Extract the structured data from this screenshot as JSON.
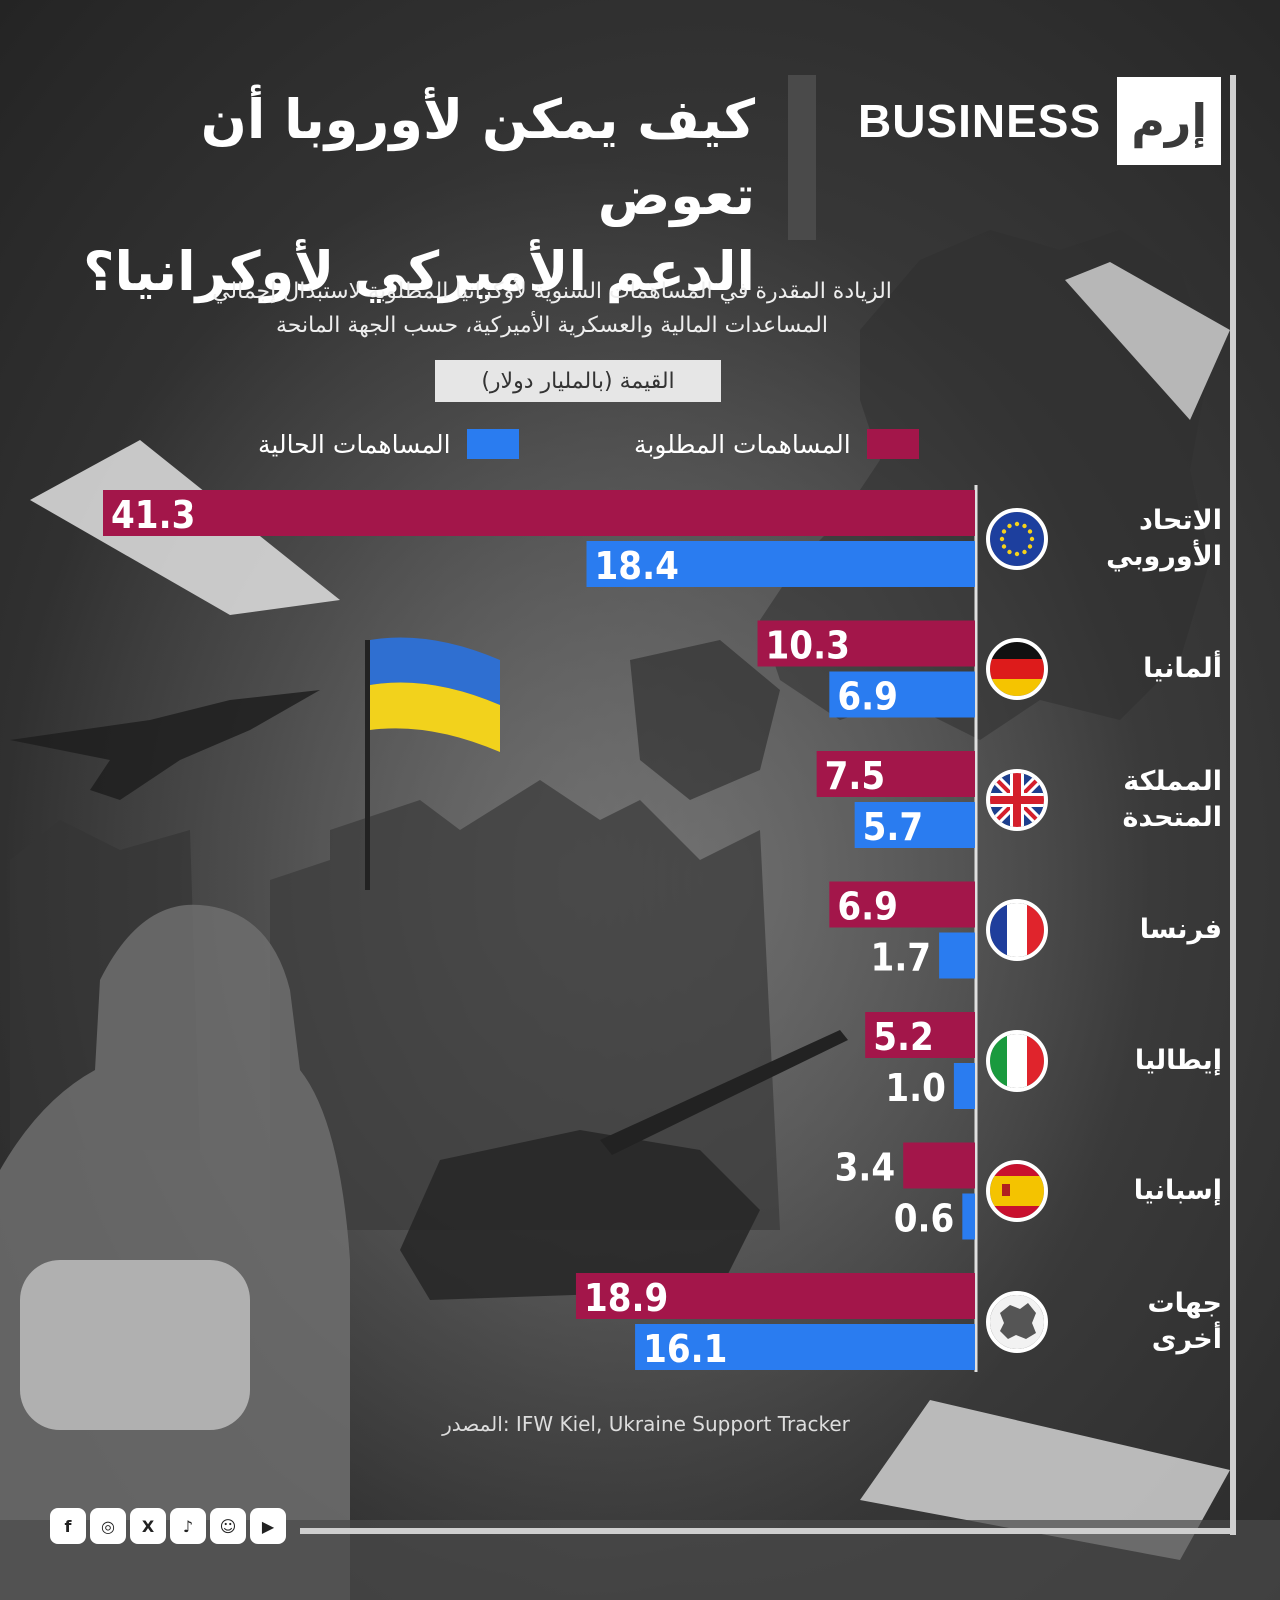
{
  "brand": {
    "name": "BUSINESS",
    "logo": "إرم"
  },
  "title": {
    "line1": "كيف يمكن لأوروبا أن تعوض",
    "line2": "الدعم الأميركي لأوكرانيا؟"
  },
  "subtitle": {
    "line1": "الزيادة المقدرة في المساهمات السنوية لأوكرانيا المطلوبة لاستبدال إجمالي",
    "line2": "المساعدات المالية والعسكرية الأميركية، حسب الجهة المانحة"
  },
  "unit_label": "القيمة (بالمليار دولار)",
  "legend": {
    "required": "المساهمات المطلوبة",
    "current": "المساهمات الحالية"
  },
  "colors": {
    "required": "#a3164a",
    "current": "#2a7cf0",
    "axis": "#e0e0e0"
  },
  "chart_data": {
    "type": "bar",
    "orientation": "horizontal",
    "categories": [
      {
        "line1": "الاتحاد",
        "line2": "الأوروبي",
        "flag": "eu-flag-icon"
      },
      {
        "line1": "ألمانيا",
        "line2": "",
        "flag": "germany-flag-icon"
      },
      {
        "line1": "المملكة",
        "line2": "المتحدة",
        "flag": "uk-flag-icon"
      },
      {
        "line1": "فرنسا",
        "line2": "",
        "flag": "france-flag-icon"
      },
      {
        "line1": "إيطاليا",
        "line2": "",
        "flag": "italy-flag-icon"
      },
      {
        "line1": "إسبانيا",
        "line2": "",
        "flag": "spain-flag-icon"
      },
      {
        "line1": "جهات",
        "line2": "أخرى",
        "flag": "europe-map-icon"
      }
    ],
    "series": [
      {
        "name": "المساهمات المطلوبة",
        "values": [
          41.3,
          10.3,
          7.5,
          6.9,
          5.2,
          3.4,
          18.9
        ],
        "labels": [
          "41.3",
          "10.3",
          "7.5",
          "6.9",
          "5.2",
          "3.4",
          "18.9"
        ]
      },
      {
        "name": "المساهمات الحالية",
        "values": [
          18.4,
          6.9,
          5.7,
          1.7,
          1.0,
          0.6,
          16.1
        ],
        "labels": [
          "18.4",
          "6.9",
          "5.7",
          "1.7",
          "1.0",
          "0.6",
          "16.1"
        ]
      }
    ],
    "xlim": [
      0,
      41.3
    ],
    "grid": false,
    "legend_position": "top"
  },
  "source": "المصدر: IFW Kiel, Ukraine Support Tracker",
  "social": [
    "facebook-icon",
    "instagram-icon",
    "x-icon",
    "tiktok-icon",
    "snapchat-icon",
    "youtube-icon"
  ]
}
